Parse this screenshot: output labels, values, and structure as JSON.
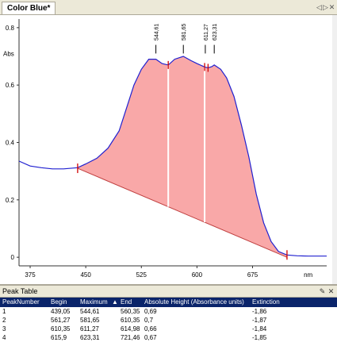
{
  "tab": {
    "title": "Color Blue*"
  },
  "tab_controls": [
    "◁",
    "▷",
    "✕"
  ],
  "peak_table": {
    "title": "Peak Table",
    "pin_icon": "pin-icon",
    "close_icon": "close-icon",
    "columns": [
      "PeakNumber",
      "Begin",
      "Maximum",
      "▲",
      "End",
      "Absolute Height (Absorbance units)",
      "Extinction"
    ],
    "rows": [
      [
        "1",
        "439,05",
        "544,61",
        "560,35",
        "0,69",
        "-1,86"
      ],
      [
        "2",
        "561,27",
        "581,65",
        "610,35",
        "0,7",
        "-1,87"
      ],
      [
        "3",
        "610,35",
        "611,27",
        "614,98",
        "0,66",
        "-1,84"
      ],
      [
        "4",
        "615,9",
        "623,31",
        "721,46",
        "0,67",
        "-1,85"
      ]
    ]
  },
  "chart_data": {
    "type": "line",
    "ylabel": "Abs",
    "xlabel": "nm",
    "xlim": [
      360,
      775
    ],
    "ylim": [
      -0.03,
      0.83
    ],
    "x_ticks": [
      "375",
      "450",
      "525",
      "600",
      "675"
    ],
    "y_ticks": [
      "0",
      "0.2",
      "0.4",
      "0.6",
      "0.8"
    ],
    "peak_labels": [
      "544,61",
      "581,65",
      "611,27",
      "623,31"
    ],
    "peak_positions": [
      544.61,
      581.65,
      611.27,
      623.31
    ],
    "baseline": {
      "from": [
        439.05,
        0.31
      ],
      "to": [
        721.46,
        0.0
      ]
    },
    "series": [
      {
        "color": "#2020d0",
        "fill": "#f9a8a8",
        "x": [
          360,
          375,
          390,
          405,
          420,
          439.05,
          450,
          465,
          480,
          495,
          505,
          515,
          525,
          535,
          544.61,
          553,
          561.27,
          570,
          581.65,
          592,
          600,
          610.35,
          614.98,
          620,
          623.31,
          632,
          640,
          650,
          660,
          670,
          680,
          690,
          700,
          710,
          721.46,
          735,
          750,
          765,
          775
        ],
        "y": [
          0.335,
          0.318,
          0.312,
          0.308,
          0.308,
          0.312,
          0.325,
          0.345,
          0.38,
          0.44,
          0.52,
          0.6,
          0.655,
          0.69,
          0.69,
          0.675,
          0.67,
          0.69,
          0.7,
          0.685,
          0.675,
          0.663,
          0.66,
          0.664,
          0.67,
          0.655,
          0.625,
          0.56,
          0.46,
          0.35,
          0.22,
          0.12,
          0.055,
          0.02,
          0.008,
          0.005,
          0.004,
          0.004,
          0.004
        ]
      }
    ]
  },
  "colors": {
    "accent": "#0a246a",
    "curve": "#2020d0",
    "fill": "#f9a8a8",
    "marker": "#d00000"
  }
}
